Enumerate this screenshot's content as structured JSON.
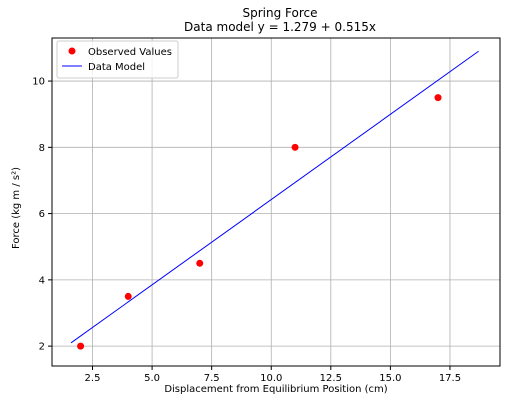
{
  "chart_data": {
    "type": "scatter",
    "title": "Spring Force",
    "subtitle": "Data model y = 1.279 + 0.515x",
    "xlabel": "Displacement from Equilibrium Position (cm)",
    "ylabel": "Force (kg m / s²)",
    "xlim": [
      0.8,
      19.6
    ],
    "ylim": [
      1.4,
      11.3
    ],
    "x_ticks": [
      2.5,
      5.0,
      7.5,
      10.0,
      12.5,
      15.0,
      17.5
    ],
    "x_tick_labels": [
      "2.5",
      "5.0",
      "7.5",
      "10.0",
      "12.5",
      "15.0",
      "17.5"
    ],
    "y_ticks": [
      2,
      4,
      6,
      8,
      10
    ],
    "y_tick_labels": [
      "2",
      "4",
      "6",
      "8",
      "10"
    ],
    "grid": true,
    "legend_position": "top-left",
    "series": [
      {
        "name": "Observed Values",
        "type": "scatter",
        "color": "#ff0000",
        "x": [
          2,
          4,
          7,
          11,
          17
        ],
        "y": [
          2.0,
          3.5,
          4.5,
          8.0,
          9.5
        ]
      },
      {
        "name": "Data Model",
        "type": "line",
        "color": "#0000ff",
        "x": [
          1.6,
          18.7
        ],
        "y": [
          2.1,
          10.9
        ]
      }
    ]
  }
}
